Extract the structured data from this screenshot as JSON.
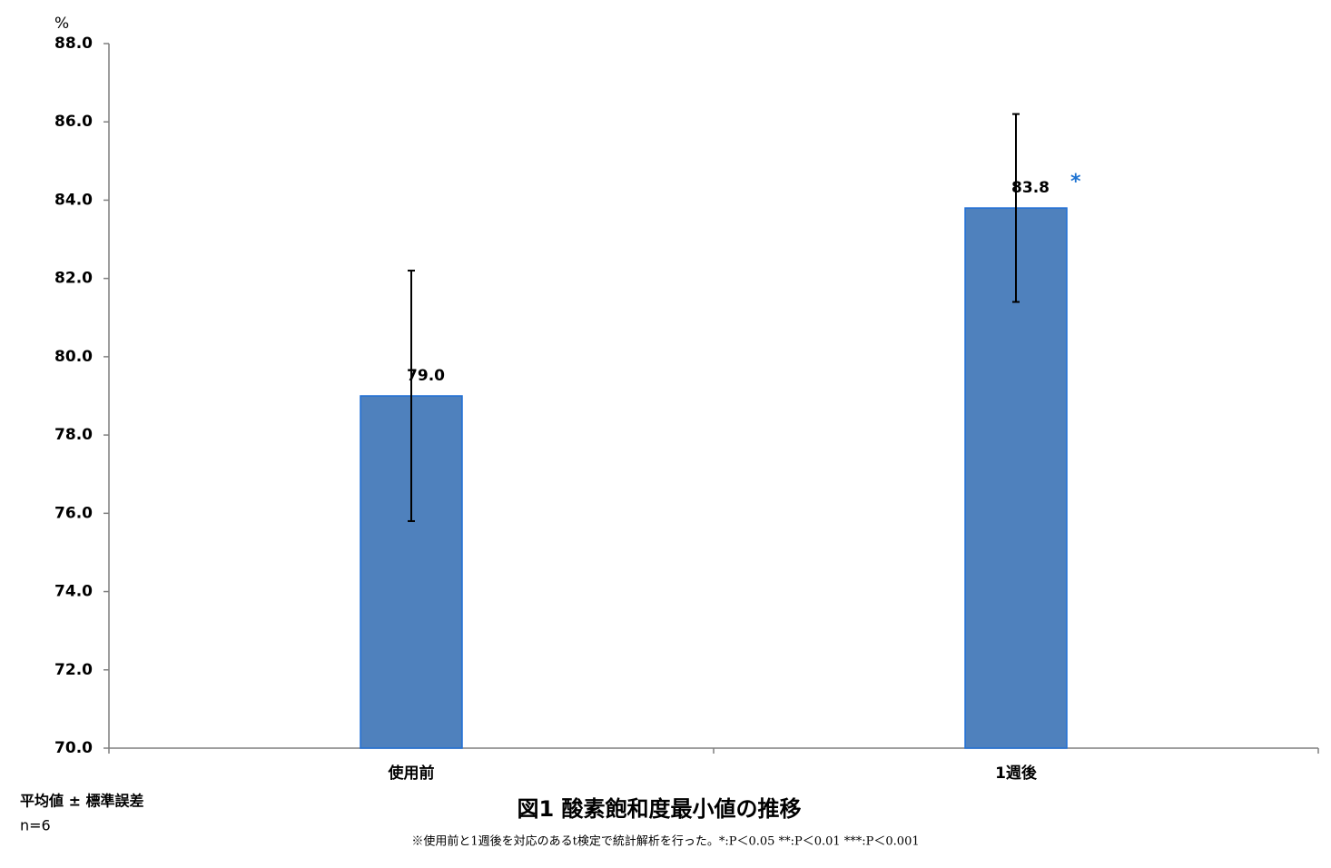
{
  "chart_data": {
    "type": "bar",
    "title": "図1  酸素飽和度最小値の推移",
    "y_label": "%",
    "categories": [
      "使用前",
      "1週後"
    ],
    "values": [
      79.0,
      83.8
    ],
    "value_labels": [
      "79.0",
      "83.8"
    ],
    "errors": [
      3.2,
      2.4
    ],
    "color": "#4f81bd",
    "edge_color": "#1f6fd6",
    "ylim": [
      70,
      88
    ],
    "yticks": [
      {
        "value": 70,
        "label": "70.0"
      },
      {
        "value": 72,
        "label": "72.0"
      },
      {
        "value": 74,
        "label": "74.0"
      },
      {
        "value": 76,
        "label": "76.0"
      },
      {
        "value": 78,
        "label": "78.0"
      },
      {
        "value": 80,
        "label": "80.0"
      },
      {
        "value": 82,
        "label": "82.0"
      },
      {
        "value": 84,
        "label": "84.0"
      },
      {
        "value": 86,
        "label": "86.0"
      },
      {
        "value": 88,
        "label": "88.0"
      }
    ],
    "grid": false,
    "annotations": [
      {
        "text": "*",
        "category": "1週後",
        "color": "#1e73d2"
      }
    ],
    "legend_note": "平均値 ± 標準誤差",
    "n_note": "n=6",
    "footnote": "※使用前と1週後を対応のあるt検定で統計解析を行った。*:P＜0.05  **:P＜0.01  ***:P＜0.001"
  }
}
